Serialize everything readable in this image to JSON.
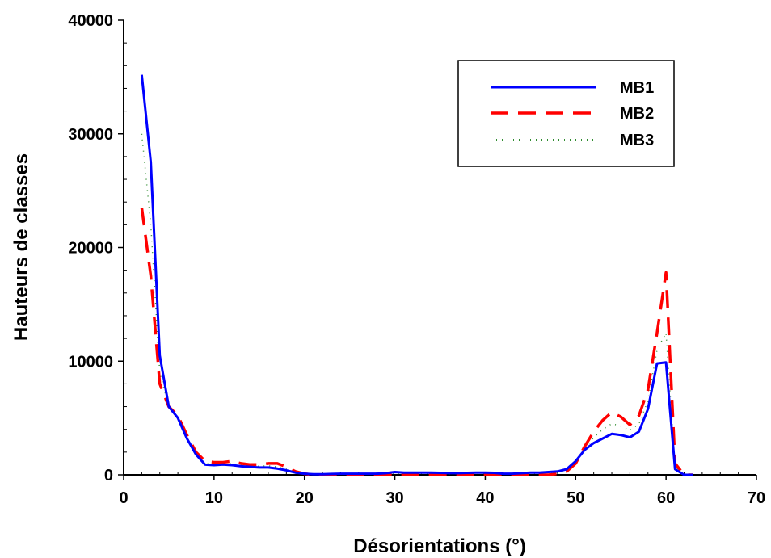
{
  "chart_data": {
    "type": "line",
    "xlabel": "Désorientations (°)",
    "ylabel": "Hauteurs de classes",
    "xlim": [
      0,
      70
    ],
    "ylim": [
      0,
      40000
    ],
    "xticks": [
      0,
      10,
      20,
      30,
      40,
      50,
      60,
      70
    ],
    "yticks": [
      0,
      10000,
      20000,
      30000,
      40000
    ],
    "grid": false,
    "legend_position": "top-right",
    "series": [
      {
        "name": "MB1",
        "color": "#0000ff",
        "style": "solid",
        "x": [
          2,
          3,
          4,
          5,
          6,
          7,
          8,
          9,
          10,
          11,
          12,
          13,
          14,
          15,
          16,
          17,
          18,
          19,
          20,
          21,
          22,
          23,
          24,
          25,
          26,
          27,
          28,
          29,
          30,
          31,
          32,
          33,
          34,
          35,
          36,
          37,
          38,
          39,
          40,
          41,
          42,
          43,
          44,
          45,
          46,
          47,
          48,
          49,
          50,
          51,
          52,
          53,
          54,
          55,
          56,
          57,
          58,
          59,
          60,
          61,
          62,
          63
        ],
        "y": [
          35200,
          27500,
          10500,
          6000,
          5000,
          3200,
          1800,
          900,
          850,
          900,
          850,
          750,
          700,
          650,
          650,
          550,
          400,
          200,
          100,
          50,
          50,
          80,
          100,
          100,
          100,
          100,
          100,
          150,
          250,
          200,
          200,
          200,
          200,
          180,
          150,
          150,
          180,
          200,
          200,
          180,
          100,
          100,
          150,
          200,
          200,
          250,
          300,
          500,
          1200,
          2200,
          2800,
          3200,
          3600,
          3500,
          3300,
          3800,
          5800,
          9800,
          9900,
          500,
          0,
          0
        ]
      },
      {
        "name": "MB2",
        "color": "#ff0000",
        "style": "dashed",
        "x": [
          2,
          3,
          4,
          5,
          6,
          7,
          8,
          9,
          10,
          11,
          12,
          13,
          14,
          15,
          16,
          17,
          18,
          19,
          20,
          21,
          22,
          23,
          24,
          25,
          26,
          27,
          28,
          29,
          30,
          31,
          32,
          33,
          34,
          35,
          36,
          37,
          38,
          39,
          40,
          41,
          42,
          43,
          44,
          45,
          46,
          47,
          48,
          49,
          50,
          51,
          52,
          53,
          54,
          55,
          56,
          57,
          58,
          59,
          60,
          61,
          62,
          63
        ],
        "y": [
          23500,
          17500,
          8000,
          6000,
          5200,
          3500,
          2000,
          1200,
          1100,
          1100,
          1200,
          1000,
          900,
          900,
          1000,
          1000,
          700,
          300,
          100,
          0,
          0,
          0,
          0,
          0,
          0,
          0,
          0,
          0,
          0,
          0,
          0,
          0,
          0,
          0,
          0,
          0,
          0,
          0,
          0,
          0,
          0,
          0,
          0,
          0,
          0,
          0,
          100,
          300,
          1000,
          2500,
          3800,
          4800,
          5500,
          5100,
          4400,
          5200,
          7500,
          12500,
          17800,
          1000,
          0,
          0
        ]
      },
      {
        "name": "MB3",
        "color": "#2e8b2e",
        "style": "dotted",
        "x": [
          2,
          3,
          4,
          5,
          6,
          7,
          8,
          9,
          10,
          11,
          12,
          13,
          14,
          15,
          16,
          17,
          18,
          19,
          20,
          21,
          22,
          23,
          24,
          25,
          26,
          27,
          28,
          29,
          30,
          31,
          32,
          33,
          34,
          35,
          36,
          37,
          38,
          39,
          40,
          41,
          42,
          43,
          44,
          45,
          46,
          47,
          48,
          49,
          50,
          51,
          52,
          53,
          54,
          55,
          56,
          57,
          58,
          59,
          60,
          61,
          62,
          63
        ],
        "y": [
          30000,
          22000,
          9000,
          6000,
          5000,
          3300,
          1900,
          1000,
          900,
          950,
          1000,
          850,
          800,
          750,
          800,
          700,
          500,
          250,
          100,
          30,
          30,
          50,
          50,
          50,
          50,
          50,
          50,
          80,
          150,
          120,
          120,
          120,
          120,
          100,
          90,
          90,
          100,
          120,
          120,
          100,
          60,
          60,
          80,
          120,
          120,
          150,
          200,
          400,
          1100,
          2300,
          3300,
          4000,
          4500,
          4300,
          3900,
          4500,
          6500,
          11000,
          12500,
          700,
          0,
          0
        ]
      }
    ]
  }
}
